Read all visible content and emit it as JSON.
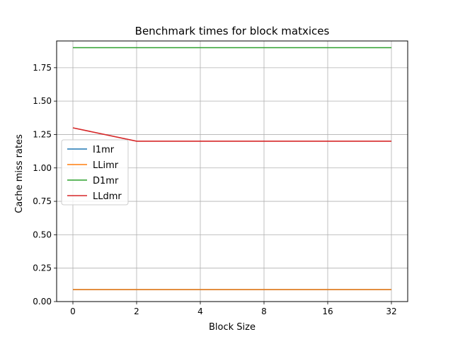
{
  "chart_data": {
    "type": "line",
    "title": "Benchmark times for block matxices",
    "xlabel": "Block Size",
    "ylabel": "Cache miss rates",
    "categories": [
      "0",
      "2",
      "4",
      "8",
      "16",
      "32"
    ],
    "ylim": [
      0,
      1.95
    ],
    "yticks": [
      "0.00",
      "0.25",
      "0.50",
      "0.75",
      "1.00",
      "1.25",
      "1.50",
      "1.75"
    ],
    "grid": true,
    "legend": "center-left",
    "series": [
      {
        "name": "I1mr",
        "color": "#1f77b4",
        "values": [
          0.09,
          0.09,
          0.09,
          0.09,
          0.09,
          0.09
        ]
      },
      {
        "name": "LLimr",
        "color": "#ff7f0e",
        "values": [
          0.09,
          0.09,
          0.09,
          0.09,
          0.09,
          0.09
        ]
      },
      {
        "name": "D1mr",
        "color": "#2ca02c",
        "values": [
          1.9,
          1.9,
          1.9,
          1.9,
          1.9,
          1.9
        ]
      },
      {
        "name": "LLdmr",
        "color": "#d62728",
        "values": [
          1.3,
          1.2,
          1.2,
          1.2,
          1.2,
          1.2
        ]
      }
    ]
  }
}
